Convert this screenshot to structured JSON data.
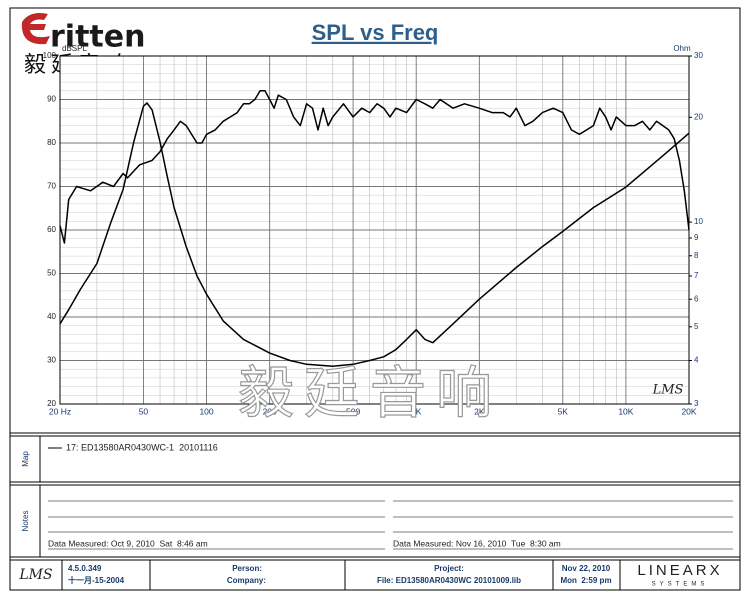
{
  "header": {
    "logo": "ritten",
    "logo_cn": "毅廷音响"
  },
  "chart_data": {
    "type": "line",
    "title": "SPL vs Freq",
    "y_label": "dBSPL",
    "y2_label": "Ohm",
    "watermark": "毅廷音响",
    "signature": "LMS",
    "xscale": "log",
    "y2scale": "log",
    "grid": true,
    "xlim": [
      20,
      20000
    ],
    "ylim": [
      20,
      100
    ],
    "y2lim": [
      3,
      30
    ],
    "xticks": [
      {
        "value": 20,
        "label": "20 Hz"
      },
      50,
      100,
      200,
      500,
      {
        "value": 1000,
        "label": "1K"
      },
      {
        "value": 2000,
        "label": "2K"
      },
      {
        "value": 5000,
        "label": "5K"
      },
      {
        "value": 10000,
        "label": "10K"
      },
      {
        "value": 20000,
        "label": "20K"
      }
    ],
    "yticks": [
      20,
      30,
      40,
      50,
      60,
      70,
      80,
      90,
      100
    ],
    "y2ticks": [
      3,
      4,
      5,
      6,
      7,
      8,
      9,
      10,
      20,
      30
    ],
    "series": [
      {
        "name": "17: ED13580AR0430WC-1  20101116",
        "color": "#000000",
        "x": [
          20,
          21,
          22,
          24,
          28,
          32,
          36,
          40,
          42,
          48,
          55,
          60,
          65,
          70,
          75,
          80,
          90,
          95,
          100,
          110,
          120,
          130,
          140,
          150,
          160,
          170,
          180,
          190,
          200,
          210,
          220,
          240,
          260,
          280,
          300,
          320,
          340,
          360,
          380,
          400,
          450,
          500,
          550,
          600,
          650,
          700,
          750,
          800,
          900,
          1000,
          1100,
          1200,
          1300,
          1500,
          1700,
          2000,
          2300,
          2600,
          2800,
          3000,
          3300,
          3600,
          4000,
          4500,
          5000,
          5500,
          6000,
          6500,
          7000,
          7500,
          8000,
          8500,
          9000,
          10000,
          11000,
          12000,
          13000,
          14000,
          15000,
          16000,
          17000,
          18000,
          19000,
          20000
        ],
        "values": [
          61,
          57,
          67,
          70,
          69,
          71,
          70,
          73,
          72,
          75,
          76,
          78,
          81,
          83,
          85,
          84,
          80,
          80,
          82,
          83,
          85,
          86,
          87,
          89,
          89,
          90,
          92,
          92,
          90,
          88,
          91,
          90,
          86,
          84,
          89,
          88,
          83,
          88,
          84,
          86,
          89,
          86,
          88,
          87,
          89,
          88,
          86,
          88,
          87,
          90,
          89,
          88,
          90,
          88,
          89,
          88,
          87,
          87,
          86,
          88,
          84,
          85,
          87,
          88,
          87,
          83,
          82,
          83,
          84,
          88,
          86,
          83,
          86,
          84,
          84,
          85,
          83,
          85,
          84,
          83,
          81,
          76,
          69,
          60
        ]
      },
      {
        "color": "#000000",
        "axis": "y2",
        "x": [
          20,
          22,
          25,
          30,
          35,
          40,
          45,
          50,
          52,
          55,
          60,
          65,
          70,
          80,
          90,
          100,
          120,
          150,
          200,
          250,
          300,
          400,
          500,
          600,
          700,
          800,
          900,
          1000,
          1100,
          1200,
          1500,
          2000,
          3000,
          4000,
          5000,
          7000,
          10000,
          15000,
          20000
        ],
        "values": [
          5.1,
          5.6,
          6.4,
          7.6,
          10,
          12.4,
          17,
          21.5,
          22,
          21,
          17,
          13.5,
          11,
          8.5,
          7,
          6.2,
          5.2,
          4.6,
          4.2,
          4.0,
          3.9,
          3.85,
          3.9,
          4.0,
          4.1,
          4.3,
          4.6,
          4.9,
          4.6,
          4.5,
          5.1,
          6.0,
          7.4,
          8.5,
          9.4,
          11,
          12.6,
          15.5,
          18
        ]
      }
    ]
  },
  "map": {
    "label": "Map"
  },
  "notes": {
    "label": "Notes",
    "left": "Data Measured: Oct 9, 2010  Sat  8:46 am",
    "right": "Data Measured: Nov 16, 2010  Tue  8:30 am"
  },
  "footer": {
    "logo": "LMS",
    "version": "4.5.0.349",
    "date": "十一月-15-2004",
    "person": "Person:",
    "company": "Company:",
    "project": "Project:",
    "file": "File: ED13580AR0430WC 20101009.lib",
    "date2": "Nov 22, 2010",
    "time": "Mon  2:59 pm",
    "brand": "LINEARX",
    "brand_sub": "SYSTEMS"
  }
}
